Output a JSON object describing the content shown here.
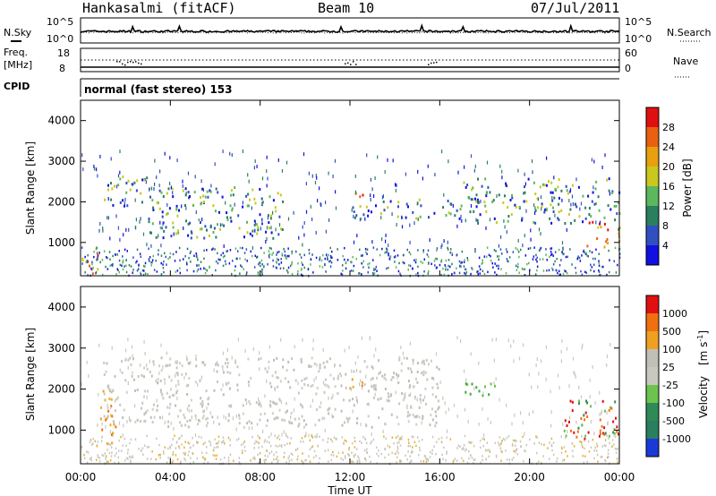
{
  "header": {
    "station": "Hankasalmi (fitACF)",
    "beam": "Beam 10",
    "date": "07/Jul/2011"
  },
  "noise_panel": {
    "left_label": "N.Sky",
    "right_label": "N.Search",
    "left_ticks": [
      "10^5",
      "10^0"
    ],
    "right_ticks": [
      "10^5",
      "10^0"
    ]
  },
  "freq_panel": {
    "left_label_1": "Freq.",
    "left_label_2": "[MHz]",
    "right_label": "Nave",
    "left_ticks": [
      "18",
      "8"
    ],
    "right_ticks": [
      "60",
      "0"
    ]
  },
  "cpid": {
    "label": "CPID",
    "text": "normal (fast stereo) 153"
  },
  "chart_data": [
    {
      "type": "heatmap",
      "parameter": "Power",
      "ylabel": "Slant Range [km]",
      "yticks": [
        1000,
        2000,
        3000,
        4000
      ],
      "ylim": [
        180,
        4500
      ],
      "xlim": [
        "00:00",
        "24:00"
      ],
      "colorbar": {
        "label": "Power [dB]",
        "tick_labels": [
          "4",
          "8",
          "12",
          "16",
          "20",
          "24",
          "28"
        ],
        "colors": [
          "#1010e0",
          "#3050c0",
          "#2a7f5f",
          "#5cb85c",
          "#c8c81e",
          "#e8a010",
          "#e86010",
          "#e01010"
        ]
      },
      "echo_bands": [
        {
          "t": [
            0.0,
            0.8
          ],
          "r": [
            200,
            900
          ],
          "level": "strong"
        },
        {
          "t": [
            1.0,
            3.0
          ],
          "r": [
            1900,
            2700
          ],
          "level": "medium"
        },
        {
          "t": [
            3.0,
            9.0
          ],
          "r": [
            1100,
            2400
          ],
          "level": "medium"
        },
        {
          "t": [
            11.8,
            12.6
          ],
          "r": [
            2100,
            2300
          ],
          "level": "strong"
        },
        {
          "t": [
            12.0,
            17.0
          ],
          "r": [
            1600,
            2100
          ],
          "level": "medium"
        },
        {
          "t": [
            17.0,
            24.0
          ],
          "r": [
            1500,
            2600
          ],
          "level": "medium"
        },
        {
          "t": [
            22.5,
            24.0
          ],
          "r": [
            900,
            1600
          ],
          "level": "strong"
        }
      ]
    },
    {
      "type": "heatmap",
      "parameter": "Velocity",
      "ylabel": "Slant Range [km]",
      "yticks": [
        1000,
        2000,
        3000,
        4000
      ],
      "ylim": [
        180,
        4500
      ],
      "xlim": [
        "00:00",
        "24:00"
      ],
      "colorbar": {
        "label_main": "Velocity",
        "label_unit": "[m s",
        "label_exp": "-1",
        "label_close": "]",
        "tick_labels": [
          "1000",
          "500",
          "100",
          "25",
          "-25",
          "-100",
          "-500",
          "-1000"
        ],
        "colors": [
          "#1a3ad8",
          "#2a7f5f",
          "#2e8b57",
          "#6cc44c",
          "#c8c8c0",
          "#c0c0b8",
          "#f0a020",
          "#f07010",
          "#e01010"
        ]
      },
      "echo_bands": [
        {
          "t": [
            0.8,
            1.6
          ],
          "r": [
            600,
            2000
          ],
          "level": "away"
        },
        {
          "t": [
            1.0,
            16.0
          ],
          "r": [
            1100,
            2800
          ],
          "level": "ground"
        },
        {
          "t": [
            11.8,
            12.6
          ],
          "r": [
            2000,
            2300
          ],
          "level": "away"
        },
        {
          "t": [
            17.0,
            18.5
          ],
          "r": [
            1800,
            2200
          ],
          "level": "toward"
        },
        {
          "t": [
            21.5,
            24.0
          ],
          "r": [
            800,
            1800
          ],
          "level": "toward_strong"
        }
      ]
    }
  ],
  "x_axis": {
    "ticks": [
      "00:00",
      "04:00",
      "08:00",
      "12:00",
      "16:00",
      "20:00",
      "00:00"
    ],
    "label": "Time UT"
  }
}
